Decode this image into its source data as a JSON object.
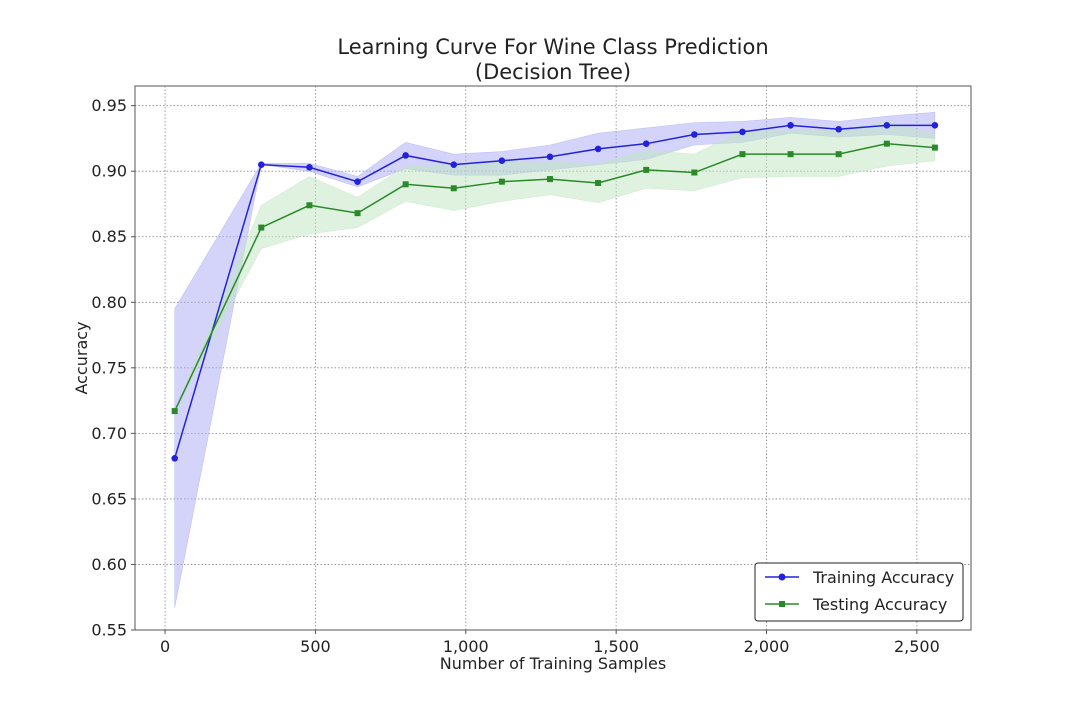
{
  "chart_data": {
    "type": "line",
    "title": "Learning Curve For Wine Class Prediction",
    "subtitle": "(Decision Tree)",
    "xlabel": "Number of Training Samples",
    "ylabel": "Accuracy",
    "xlim": [
      -100,
      2680
    ],
    "ylim": [
      0.55,
      0.965
    ],
    "x_ticks": [
      0,
      500,
      1000,
      1500,
      2000,
      2500
    ],
    "x_tick_labels": [
      "0",
      "500",
      "1,000",
      "1,500",
      "2,000",
      "2,500"
    ],
    "y_ticks": [
      0.55,
      0.6,
      0.65,
      0.7,
      0.75,
      0.8,
      0.85,
      0.9,
      0.95
    ],
    "y_tick_labels": [
      "0.55",
      "0.60",
      "0.65",
      "0.70",
      "0.75",
      "0.80",
      "0.85",
      "0.90",
      "0.95"
    ],
    "grid": true,
    "legend_position": "bottom-right",
    "x": [
      32,
      320,
      480,
      640,
      800,
      960,
      1120,
      1280,
      1440,
      1600,
      1760,
      1920,
      2080,
      2240,
      2400,
      2560
    ],
    "series": [
      {
        "name": "Training Accuracy",
        "marker": "circle",
        "color": "#2222dd",
        "band_color": "#aaaaf5",
        "values": [
          0.681,
          0.905,
          0.903,
          0.892,
          0.912,
          0.905,
          0.908,
          0.911,
          0.917,
          0.921,
          0.928,
          0.93,
          0.935,
          0.932,
          0.935,
          0.935
        ],
        "lower": [
          0.567,
          0.905,
          0.9,
          0.888,
          0.902,
          0.897,
          0.897,
          0.901,
          0.905,
          0.909,
          0.92,
          0.922,
          0.929,
          0.926,
          0.928,
          0.925
        ],
        "upper": [
          0.795,
          0.906,
          0.906,
          0.896,
          0.922,
          0.913,
          0.915,
          0.92,
          0.929,
          0.933,
          0.937,
          0.938,
          0.941,
          0.938,
          0.942,
          0.945
        ]
      },
      {
        "name": "Testing Accuracy",
        "marker": "square",
        "color": "#2a8a2a",
        "band_color": "#bfe5bf",
        "values": [
          0.717,
          0.857,
          0.874,
          0.868,
          0.89,
          0.887,
          0.892,
          0.894,
          0.891,
          0.901,
          0.899,
          0.913,
          0.913,
          0.913,
          0.921,
          0.918
        ],
        "lower": [
          0.717,
          0.841,
          0.852,
          0.857,
          0.877,
          0.87,
          0.877,
          0.882,
          0.876,
          0.887,
          0.885,
          0.895,
          0.896,
          0.896,
          0.904,
          0.908
        ],
        "upper": [
          0.717,
          0.874,
          0.896,
          0.88,
          0.904,
          0.905,
          0.908,
          0.907,
          0.906,
          0.916,
          0.913,
          0.931,
          0.931,
          0.931,
          0.938,
          0.928
        ]
      }
    ]
  }
}
